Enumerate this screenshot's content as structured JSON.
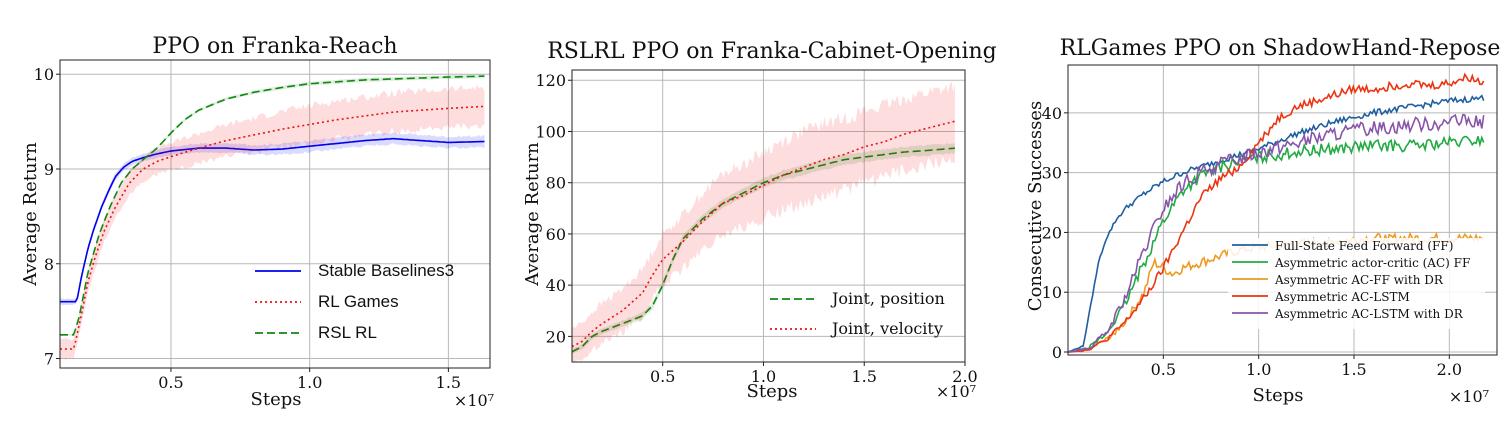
{
  "chart_data": [
    {
      "type": "line",
      "title": "PPO on Franka-Reach",
      "xlabel": "Steps",
      "ylabel": "Average Return",
      "x_multiplier_label": "×10⁷",
      "xlim": [
        0.1,
        1.65
      ],
      "ylim": [
        6.9,
        10.15
      ],
      "xticks": [
        0.5,
        1.0,
        1.5
      ],
      "xtick_labels": [
        "0.5",
        "1.0",
        "1.5"
      ],
      "yticks": [
        7,
        8,
        9,
        10
      ],
      "ytick_labels": [
        "7",
        "8",
        "9",
        "10"
      ],
      "grid": true,
      "legend_position": "bottom-right",
      "series": [
        {
          "name": "Stable Baselines3",
          "color": "#0000ee",
          "style": "solid",
          "x": [
            0.1,
            0.16,
            0.18,
            0.2,
            0.22,
            0.25,
            0.28,
            0.3,
            0.33,
            0.36,
            0.4,
            0.45,
            0.5,
            0.6,
            0.7,
            0.8,
            0.9,
            1.0,
            1.1,
            1.2,
            1.3,
            1.4,
            1.5,
            1.63
          ],
          "y": [
            7.6,
            7.6,
            7.9,
            8.15,
            8.35,
            8.6,
            8.8,
            8.92,
            9.02,
            9.08,
            9.12,
            9.16,
            9.19,
            9.22,
            9.22,
            9.2,
            9.21,
            9.24,
            9.27,
            9.3,
            9.32,
            9.3,
            9.28,
            9.29
          ],
          "band": 0.06
        },
        {
          "name": "RL Games",
          "color": "#ee1111",
          "style": "dotted",
          "x": [
            0.1,
            0.15,
            0.18,
            0.2,
            0.23,
            0.26,
            0.3,
            0.35,
            0.4,
            0.45,
            0.5,
            0.6,
            0.7,
            0.8,
            0.9,
            1.0,
            1.1,
            1.2,
            1.3,
            1.4,
            1.5,
            1.63
          ],
          "y": [
            7.1,
            7.1,
            7.5,
            7.8,
            8.1,
            8.35,
            8.6,
            8.85,
            9.0,
            9.08,
            9.13,
            9.22,
            9.3,
            9.36,
            9.42,
            9.47,
            9.52,
            9.56,
            9.6,
            9.62,
            9.64,
            9.66
          ],
          "band": 0.2
        },
        {
          "name": "RSL RL",
          "color": "#118811",
          "style": "dashed",
          "x": [
            0.1,
            0.15,
            0.17,
            0.2,
            0.24,
            0.28,
            0.32,
            0.36,
            0.4,
            0.45,
            0.5,
            0.55,
            0.6,
            0.7,
            0.8,
            0.9,
            1.0,
            1.1,
            1.2,
            1.3,
            1.4,
            1.5,
            1.63
          ],
          "y": [
            7.25,
            7.25,
            7.45,
            7.9,
            8.3,
            8.6,
            8.85,
            9.0,
            9.1,
            9.22,
            9.38,
            9.52,
            9.62,
            9.74,
            9.81,
            9.86,
            9.9,
            9.92,
            9.94,
            9.95,
            9.96,
            9.97,
            9.98
          ],
          "band": 0.02
        }
      ]
    },
    {
      "type": "line",
      "title": "RSLRL PPO on Franka-Cabinet-Opening",
      "xlabel": "Steps",
      "ylabel": "Average Return",
      "x_multiplier_label": "×10⁷",
      "xlim": [
        0.05,
        2.0
      ],
      "ylim": [
        10,
        124
      ],
      "xticks": [
        0.5,
        1.0,
        1.5,
        2.0
      ],
      "xtick_labels": [
        "0.5",
        "1.0",
        "1.5",
        "2.0"
      ],
      "yticks": [
        20,
        40,
        60,
        80,
        100,
        120
      ],
      "ytick_labels": [
        "20",
        "40",
        "60",
        "80",
        "100",
        "120"
      ],
      "grid": true,
      "legend_position": "bottom-right",
      "series": [
        {
          "name": "Joint, position",
          "color": "#118811",
          "style": "dashed",
          "x": [
            0.05,
            0.1,
            0.15,
            0.2,
            0.3,
            0.4,
            0.45,
            0.5,
            0.55,
            0.6,
            0.7,
            0.8,
            0.9,
            1.0,
            1.1,
            1.2,
            1.3,
            1.4,
            1.5,
            1.6,
            1.7,
            1.8,
            1.95
          ],
          "y": [
            14,
            16,
            20,
            22,
            25,
            28,
            32,
            40,
            50,
            58,
            66,
            72,
            76,
            80,
            83,
            85,
            87,
            89,
            90,
            91,
            92,
            92.5,
            93.5
          ],
          "band": 2
        },
        {
          "name": "Joint, velocity",
          "color": "#ee1111",
          "style": "dotted",
          "x": [
            0.05,
            0.1,
            0.15,
            0.2,
            0.3,
            0.4,
            0.45,
            0.5,
            0.6,
            0.7,
            0.8,
            0.9,
            1.0,
            1.1,
            1.2,
            1.3,
            1.4,
            1.5,
            1.6,
            1.7,
            1.8,
            1.95
          ],
          "y": [
            16,
            18,
            22,
            25,
            30,
            37,
            44,
            50,
            57,
            65,
            72,
            75,
            79,
            83,
            86,
            89,
            91,
            94,
            96,
            99,
            101,
            104
          ],
          "band": 14
        }
      ]
    },
    {
      "type": "line",
      "title": "RLGames PPO on ShadowHand-Repose",
      "xlabel": "Steps",
      "ylabel": "Consecutive Successes",
      "x_multiplier_label": "×10⁷",
      "xlim": [
        0.0,
        2.25
      ],
      "ylim": [
        -0.5,
        48
      ],
      "xticks": [
        0.5,
        1.0,
        1.5,
        2.0
      ],
      "xtick_labels": [
        "0.5",
        "1.0",
        "1.5",
        "2.0"
      ],
      "yticks": [
        0,
        10,
        20,
        30,
        40
      ],
      "ytick_labels": [
        "0",
        "10",
        "20",
        "30",
        "40"
      ],
      "grid": true,
      "legend_position": "bottom-right",
      "series": [
        {
          "name": "Full-State Feed Forward (FF)",
          "color": "#1f5fa0",
          "style": "solid",
          "x": [
            0.0,
            0.08,
            0.12,
            0.16,
            0.2,
            0.25,
            0.3,
            0.4,
            0.5,
            0.6,
            0.8,
            1.0,
            1.2,
            1.4,
            1.6,
            1.8,
            2.0,
            2.18
          ],
          "y": [
            0,
            1,
            8,
            15,
            19,
            22,
            24,
            26.5,
            28.5,
            30,
            32,
            34,
            36.5,
            38.5,
            40,
            41,
            42,
            42.5
          ],
          "noise": 0.5
        },
        {
          "name": "Asymmetric actor-critic (AC) FF",
          "color": "#22aa44",
          "style": "solid",
          "x": [
            0.0,
            0.1,
            0.2,
            0.3,
            0.4,
            0.5,
            0.6,
            0.7,
            0.8,
            0.9,
            1.0,
            1.2,
            1.4,
            1.6,
            1.8,
            2.0,
            2.18
          ],
          "y": [
            0,
            0.5,
            3,
            8,
            15,
            22,
            27,
            29.5,
            31,
            32,
            32.5,
            33.5,
            34,
            34.5,
            34.5,
            35,
            35.5
          ],
          "noise": 1.0
        },
        {
          "name": "Asymmetric AC-FF with DR",
          "color": "#ee9922",
          "style": "solid",
          "x": [
            0.0,
            0.1,
            0.2,
            0.3,
            0.4,
            0.45,
            0.5,
            0.55,
            0.6,
            0.7,
            0.8,
            0.9,
            1.0,
            1.2,
            1.4,
            1.6,
            1.8,
            2.0,
            2.18
          ],
          "y": [
            0,
            0.5,
            2,
            5,
            10,
            15,
            14,
            13,
            14,
            15,
            16,
            17,
            17.5,
            18,
            18.5,
            19,
            19,
            19,
            19
          ],
          "noise": 0.8
        },
        {
          "name": "Asymmetric AC-LSTM",
          "color": "#ee3311",
          "style": "solid",
          "x": [
            0.0,
            0.1,
            0.2,
            0.3,
            0.4,
            0.5,
            0.6,
            0.7,
            0.8,
            0.9,
            0.95,
            1.0,
            1.1,
            1.2,
            1.3,
            1.4,
            1.5,
            1.6,
            1.7,
            1.8,
            1.9,
            2.0,
            2.1,
            2.18
          ],
          "y": [
            0,
            0.3,
            2,
            5,
            9,
            14,
            20,
            26,
            29,
            31,
            33,
            35,
            39,
            41,
            42,
            43,
            44,
            44,
            44.5,
            45,
            44.5,
            45,
            46,
            45
          ],
          "noise": 0.7
        },
        {
          "name": "Asymmetric AC-LSTM with DR",
          "color": "#8855aa",
          "style": "solid",
          "x": [
            0.0,
            0.1,
            0.2,
            0.3,
            0.4,
            0.5,
            0.6,
            0.7,
            0.8,
            0.9,
            1.0,
            1.2,
            1.4,
            1.6,
            1.8,
            2.0,
            2.18
          ],
          "y": [
            0,
            0.5,
            3,
            9,
            17,
            24,
            28,
            30,
            31.5,
            32.5,
            33.5,
            35,
            36.5,
            37.5,
            38,
            38.5,
            38.5
          ],
          "noise": 1.2
        }
      ]
    }
  ]
}
